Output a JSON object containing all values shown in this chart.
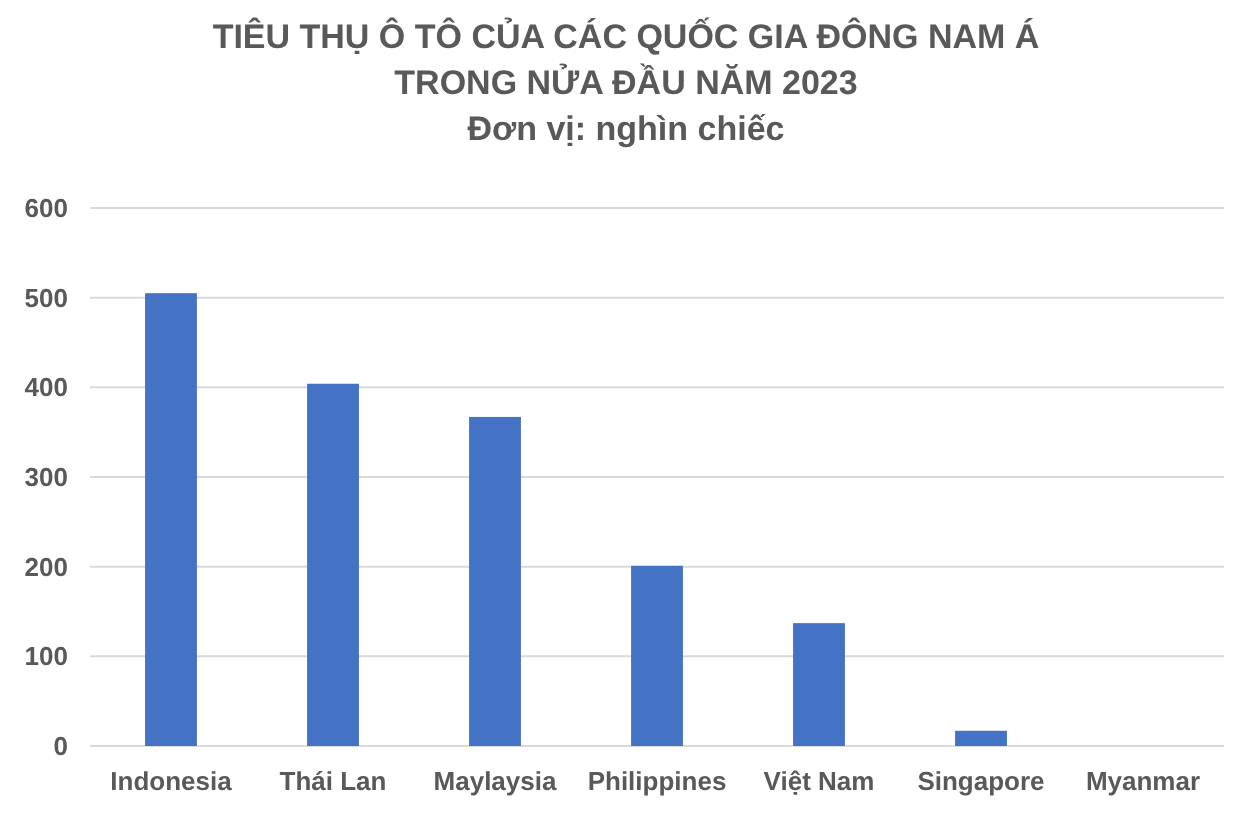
{
  "chart_data": {
    "type": "bar",
    "title": "TIÊU THỤ Ô TÔ CỦA CÁC QUỐC GIA ĐÔNG NAM Á TRONG NỬA ĐẦU NĂM 2023",
    "subtitle": "Đơn vị: nghìn chiếc",
    "categories": [
      "Indonesia",
      "Thái Lan",
      "Maylaysia",
      "Philippines",
      "Việt Nam",
      "Singapore",
      "Myanmar"
    ],
    "values": [
      505,
      404,
      367,
      201,
      137,
      17,
      0
    ],
    "color": "#4472c4",
    "ylim": [
      0,
      600
    ],
    "yticks": [
      0,
      100,
      200,
      300,
      400,
      500,
      600
    ],
    "grid": "y"
  }
}
